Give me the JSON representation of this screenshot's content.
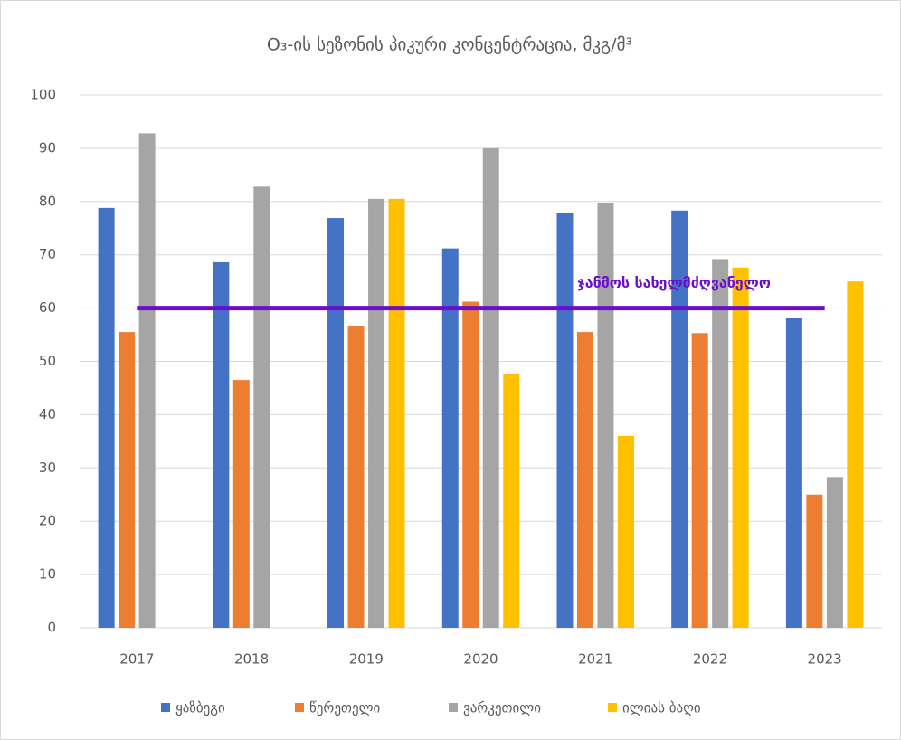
{
  "chart_data": {
    "type": "bar",
    "title": "O₃-ის სეზონის პიკური კონცენტრაცია, მკგ/მ³",
    "categories": [
      "2017",
      "2018",
      "2019",
      "2020",
      "2021",
      "2022",
      "2023"
    ],
    "series": [
      {
        "name": "ყაზბეგი",
        "color": "#4472c4",
        "values": [
          78.8,
          68.6,
          76.9,
          71.2,
          77.9,
          78.3,
          58.2
        ]
      },
      {
        "name": "წერეთელი",
        "color": "#ed7d31",
        "values": [
          55.5,
          46.5,
          56.7,
          61.2,
          55.5,
          55.3,
          25
        ]
      },
      {
        "name": "ვარკეთილი",
        "color": "#a5a5a5",
        "values": [
          92.8,
          82.8,
          80.5,
          90,
          79.8,
          69.2,
          28.3
        ]
      },
      {
        "name": "ილიას ბაღი",
        "color": "#ffc000",
        "values": [
          null,
          null,
          80.5,
          47.7,
          36,
          67.6,
          65
        ]
      }
    ],
    "threshold": {
      "value": 60,
      "label": "ჯანმოს  სახელმძღვანელო",
      "color": "#6a0dcc"
    },
    "ylim": [
      0,
      100
    ],
    "yticks": [
      0,
      10,
      20,
      30,
      40,
      50,
      60,
      70,
      80,
      90,
      100
    ],
    "grid": true,
    "legend": "bottom"
  }
}
